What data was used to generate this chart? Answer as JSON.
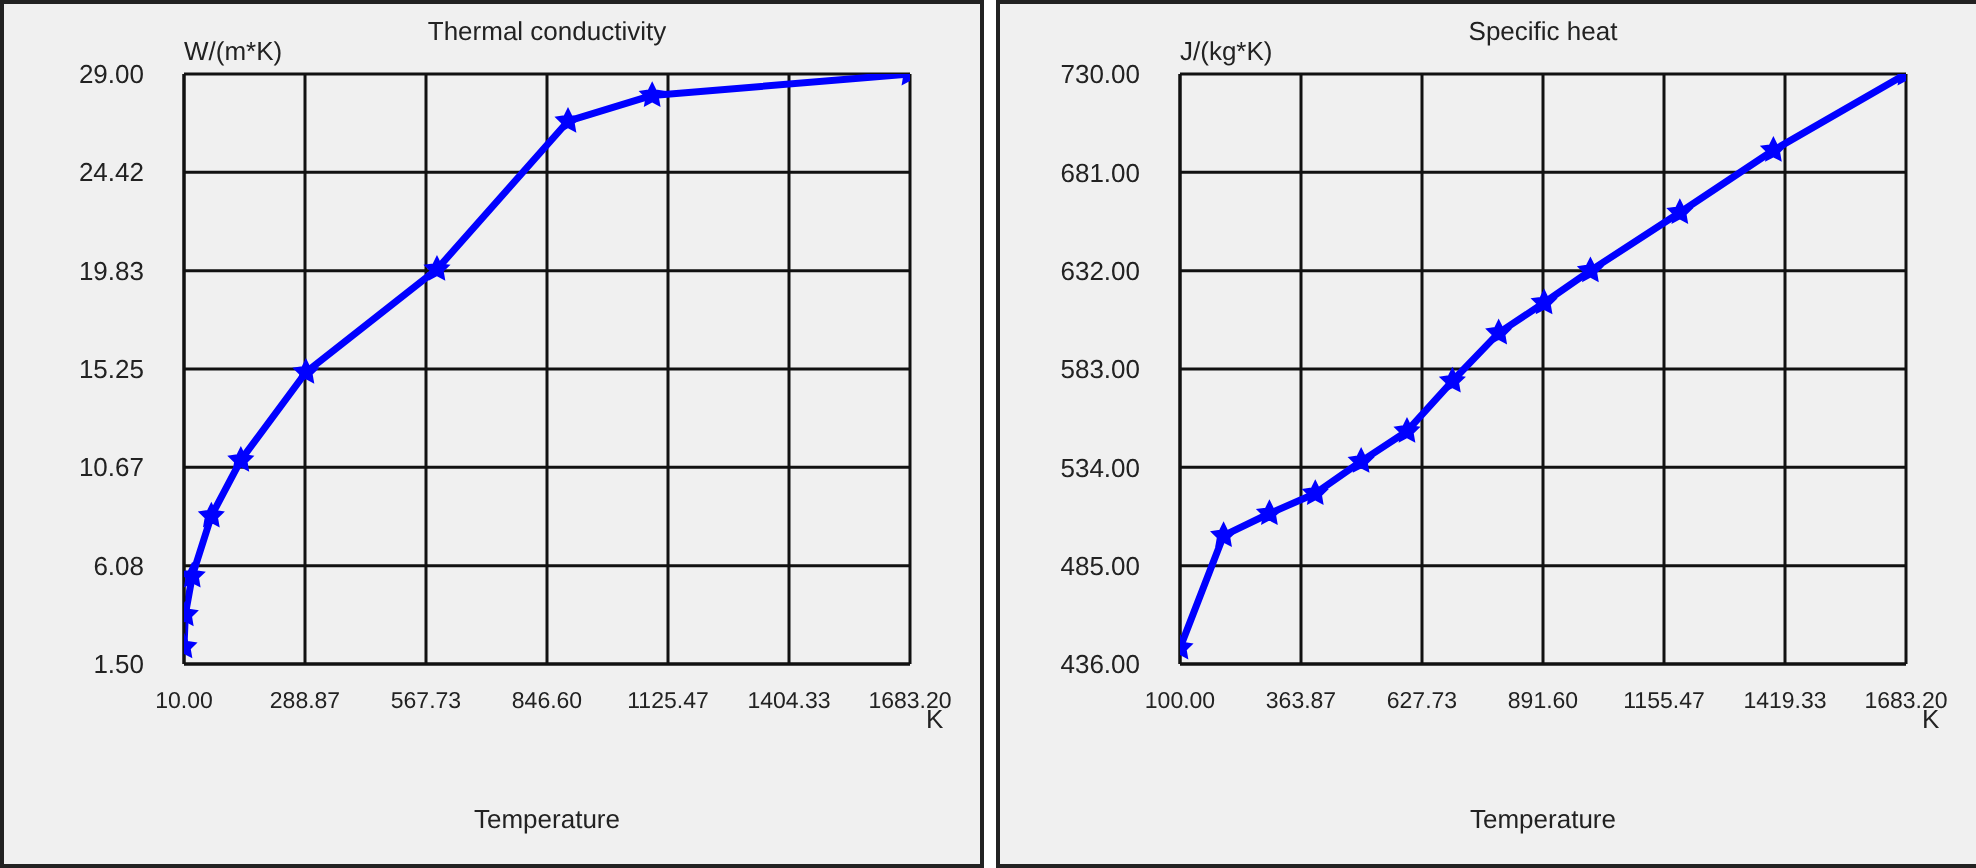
{
  "chart_data": [
    {
      "type": "line",
      "title": "Thermal conductivity",
      "xlabel": "Temperature",
      "ylabel": "W/(m*K)",
      "annotations": [
        "K"
      ],
      "x": [
        10,
        13,
        29,
        73,
        141,
        291,
        593,
        895,
        1089,
        1683
      ],
      "series": [
        {
          "color": "#0000ff",
          "values": [
            2.3,
            3.8,
            5.6,
            8.4,
            11.0,
            15.1,
            19.9,
            26.8,
            28.0,
            29.0
          ]
        }
      ],
      "xlim": [
        10,
        1683.2
      ],
      "xticks": [
        {
          "value": 10,
          "label": "10.00"
        },
        {
          "value": 288.87,
          "label": "288.87"
        },
        {
          "value": 567.73,
          "label": "567.73"
        },
        {
          "value": 846.6,
          "label": "846.60"
        },
        {
          "value": 1125.47,
          "label": "1125.47"
        },
        {
          "value": 1404.33,
          "label": "1404.33"
        },
        {
          "value": 1683.2,
          "label": "1683.20"
        }
      ],
      "ylim": [
        1.5,
        29
      ],
      "yticks": [
        {
          "value": 1.5,
          "label": "1.50"
        },
        {
          "value": 6.08,
          "label": "6.08"
        },
        {
          "value": 10.67,
          "label": "10.67"
        },
        {
          "value": 15.25,
          "label": "15.25"
        },
        {
          "value": 19.83,
          "label": "19.83"
        },
        {
          "value": 24.42,
          "label": "24.42"
        },
        {
          "value": 29,
          "label": "29.00"
        }
      ],
      "grid": true,
      "legend": false,
      "marker": "star",
      "line_style": "solid"
    },
    {
      "type": "line",
      "title": "Specific heat",
      "xlabel": "Temperature",
      "ylabel": "J/(kg*K)",
      "annotations": [
        "K"
      ],
      "x": [
        100,
        195,
        295,
        395,
        495,
        595,
        694,
        795,
        894,
        995,
        1190,
        1394,
        1683
      ],
      "series": [
        {
          "color": "#0000ff",
          "values": [
            444,
            500,
            511,
            521,
            537,
            552,
            577,
            601,
            616,
            632,
            661,
            692,
            730
          ]
        }
      ],
      "xlim": [
        100,
        1683.2
      ],
      "xticks": [
        {
          "value": 100,
          "label": "100.00"
        },
        {
          "value": 363.87,
          "label": "363.87"
        },
        {
          "value": 627.73,
          "label": "627.73"
        },
        {
          "value": 891.6,
          "label": "891.60"
        },
        {
          "value": 1155.47,
          "label": "1155.47"
        },
        {
          "value": 1419.33,
          "label": "1419.33"
        },
        {
          "value": 1683.2,
          "label": "1683.20"
        }
      ],
      "ylim": [
        436,
        730
      ],
      "yticks": [
        {
          "value": 436,
          "label": "436.00"
        },
        {
          "value": 485,
          "label": "485.00"
        },
        {
          "value": 534,
          "label": "534.00"
        },
        {
          "value": 583,
          "label": "583.00"
        },
        {
          "value": 632,
          "label": "632.00"
        },
        {
          "value": 681,
          "label": "681.00"
        },
        {
          "value": 730,
          "label": "730.00"
        }
      ],
      "grid": true,
      "legend": false,
      "marker": "star",
      "line_style": "solid"
    }
  ]
}
